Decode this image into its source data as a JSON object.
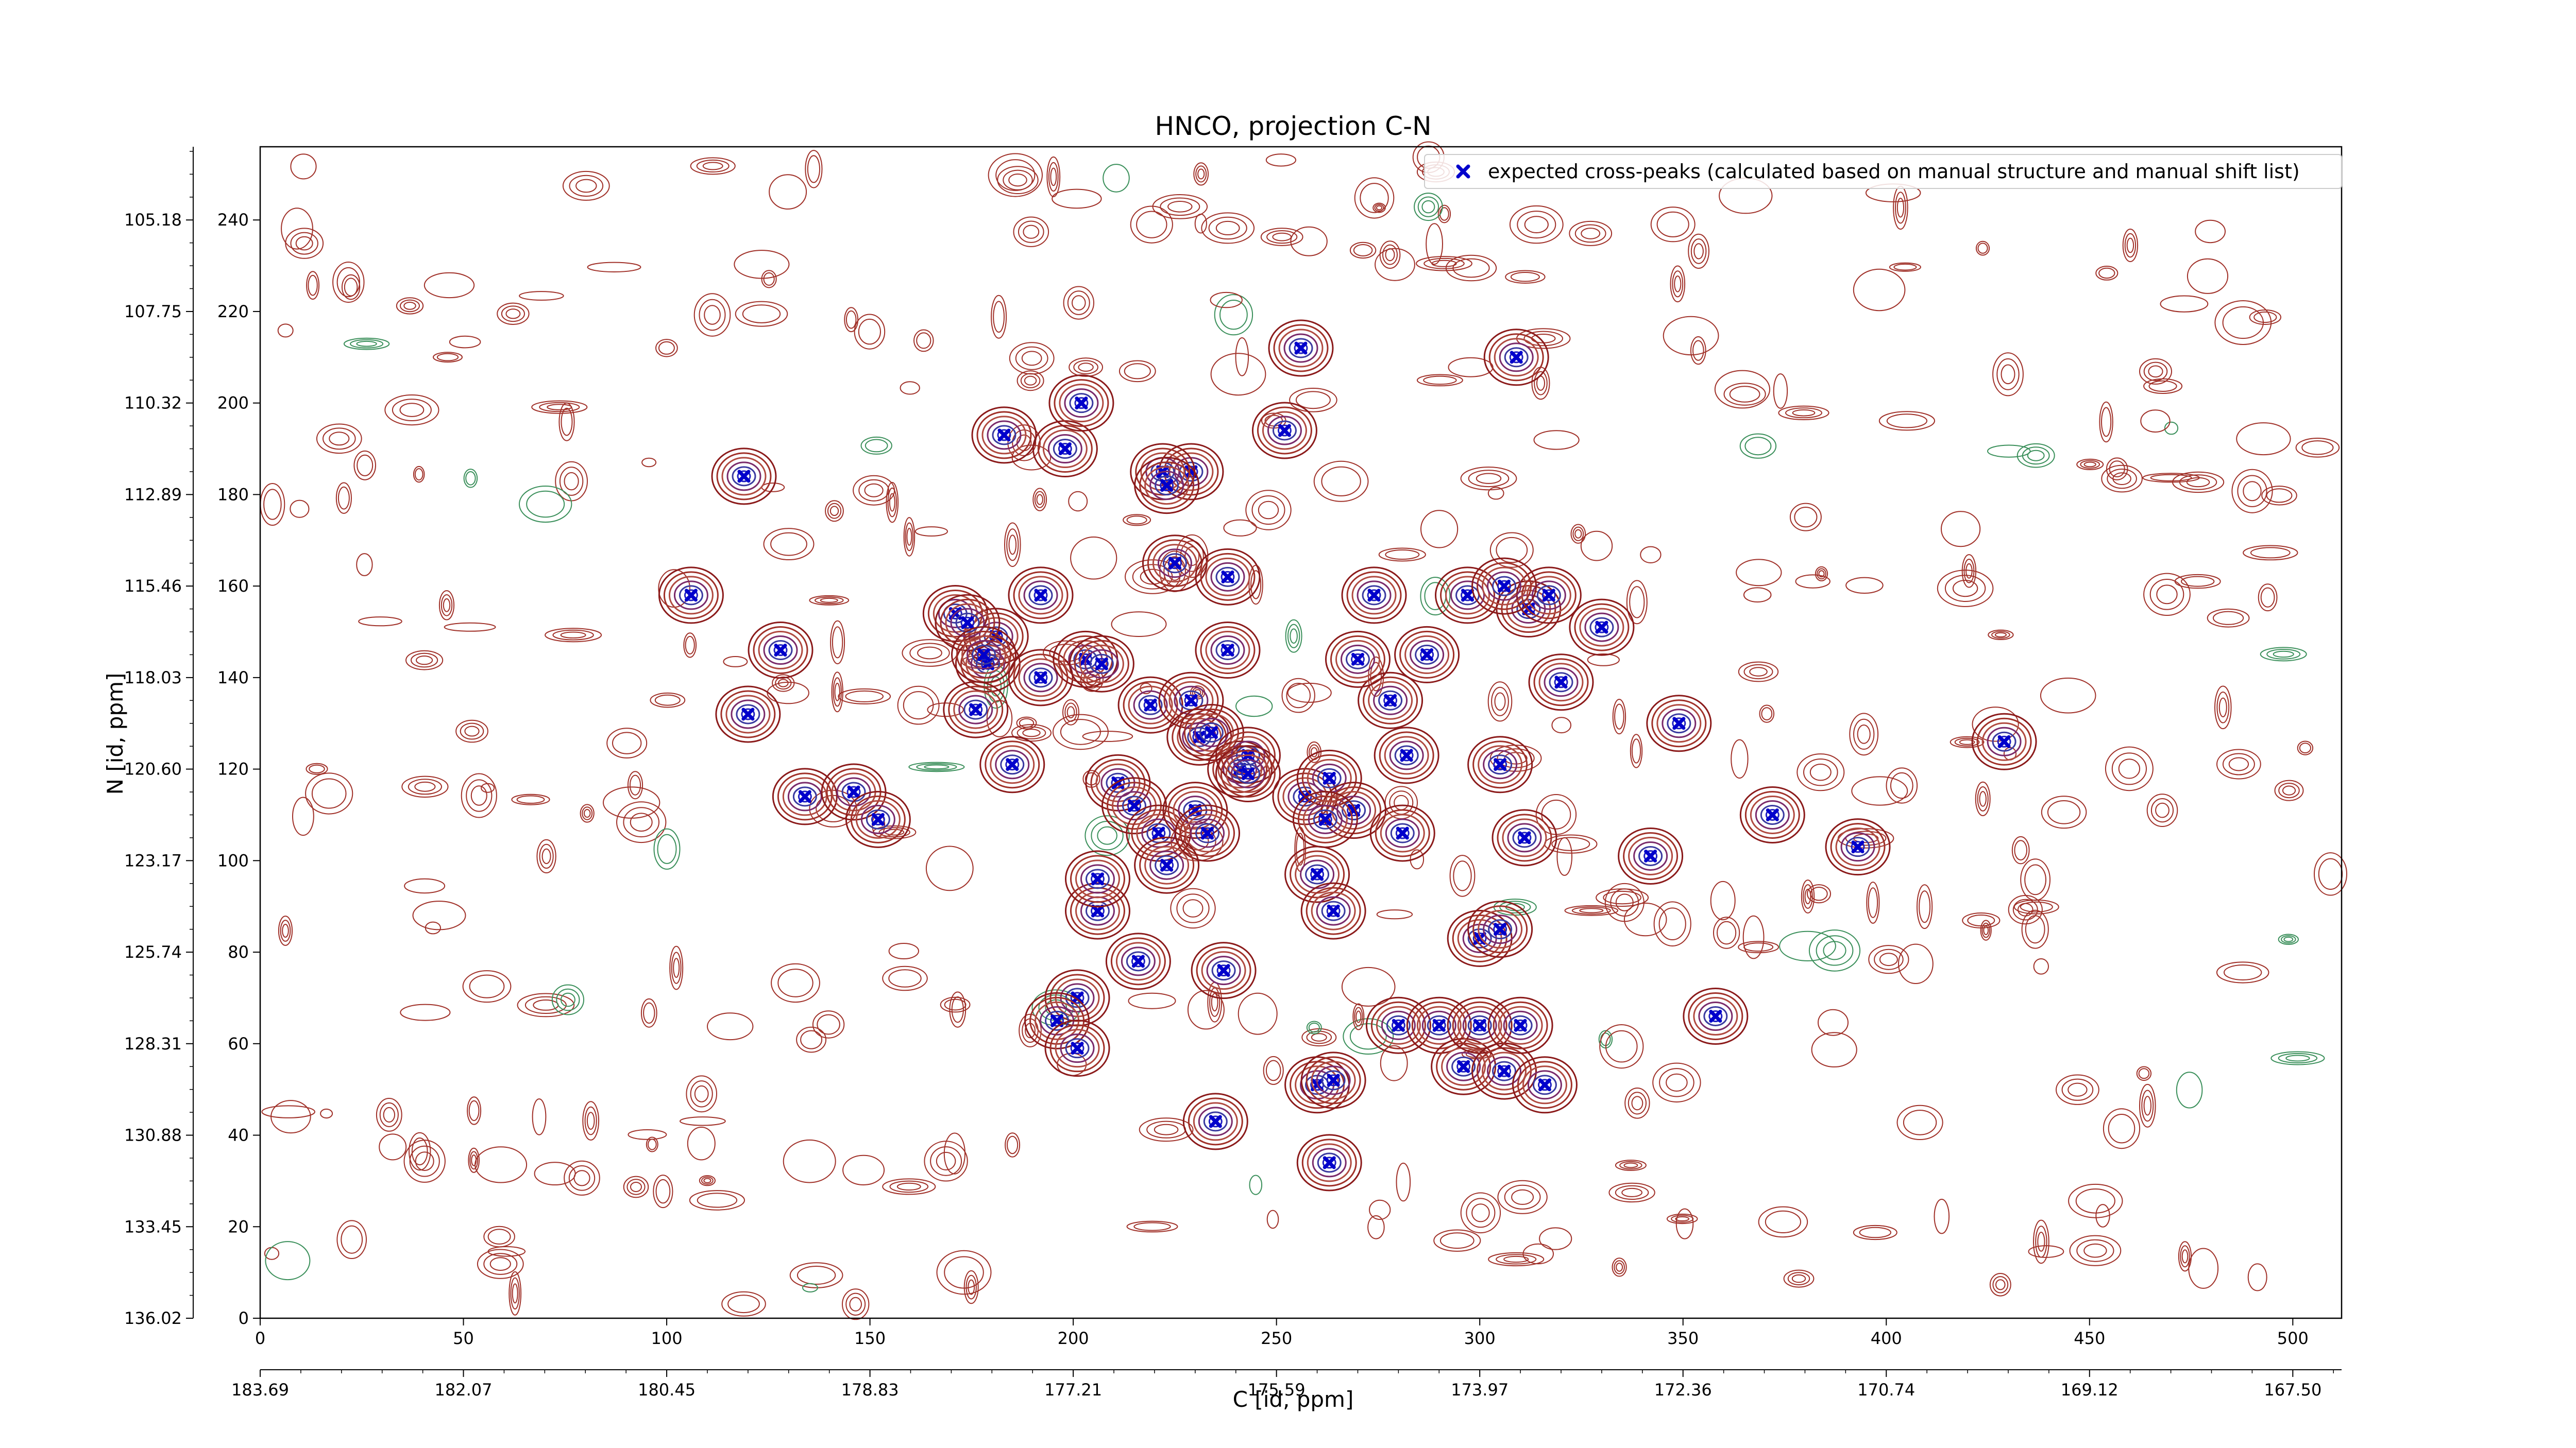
{
  "chart_data": {
    "type": "scatter",
    "title": "HNCO, projection C-N",
    "xlabel": "C [id, ppm]",
    "ylabel": "N [id, ppm]",
    "xlim": [
      0,
      512
    ],
    "ylim": [
      0,
      256
    ],
    "x_ticks": [
      0,
      50,
      100,
      150,
      200,
      250,
      300,
      350,
      400,
      450,
      500
    ],
    "y_ticks": [
      0,
      20,
      40,
      60,
      80,
      100,
      120,
      140,
      160,
      180,
      200,
      220,
      240
    ],
    "x_ppm_ticks": [
      {
        "pos": 0,
        "label": "183.69"
      },
      {
        "pos": 50,
        "label": "182.07"
      },
      {
        "pos": 100,
        "label": "180.45"
      },
      {
        "pos": 150,
        "label": "178.83"
      },
      {
        "pos": 200,
        "label": "177.21"
      },
      {
        "pos": 250,
        "label": "175.59"
      },
      {
        "pos": 300,
        "label": "173.97"
      },
      {
        "pos": 350,
        "label": "172.36"
      },
      {
        "pos": 400,
        "label": "170.74"
      },
      {
        "pos": 450,
        "label": "169.12"
      },
      {
        "pos": 500,
        "label": "167.50"
      }
    ],
    "y_ppm_ticks": [
      {
        "pos": 0,
        "label": "136.02"
      },
      {
        "pos": 20,
        "label": "133.45"
      },
      {
        "pos": 40,
        "label": "130.88"
      },
      {
        "pos": 60,
        "label": "128.31"
      },
      {
        "pos": 80,
        "label": "125.74"
      },
      {
        "pos": 100,
        "label": "123.17"
      },
      {
        "pos": 120,
        "label": "120.60"
      },
      {
        "pos": 140,
        "label": "118.03"
      },
      {
        "pos": 160,
        "label": "115.46"
      },
      {
        "pos": 180,
        "label": "112.89"
      },
      {
        "pos": 200,
        "label": "110.32"
      },
      {
        "pos": 220,
        "label": "107.75"
      },
      {
        "pos": 240,
        "label": "105.18"
      }
    ],
    "legend_position": "top-right",
    "series": [
      {
        "name": "expected cross-peaks (calculated based on manual structure and manual shift list)",
        "color": "#0000cc",
        "marker": "x",
        "points": [
          [
            119,
            184
          ],
          [
            120,
            132
          ],
          [
            106,
            158
          ],
          [
            128,
            146
          ],
          [
            134,
            114
          ],
          [
            146,
            115
          ],
          [
            152,
            109
          ],
          [
            183,
            193
          ],
          [
            181,
            149
          ],
          [
            179,
            143
          ],
          [
            171,
            154
          ],
          [
            176,
            133
          ],
          [
            185,
            121
          ],
          [
            198,
            190
          ],
          [
            202,
            200
          ],
          [
            192,
            158
          ],
          [
            192,
            140
          ],
          [
            203,
            144
          ],
          [
            207,
            143
          ],
          [
            206,
            89
          ],
          [
            211,
            117
          ],
          [
            215,
            112
          ],
          [
            216,
            78
          ],
          [
            221,
            106
          ],
          [
            229,
            185
          ],
          [
            225,
            165
          ],
          [
            222,
            185
          ],
          [
            223,
            182
          ],
          [
            219,
            134
          ],
          [
            230,
            111
          ],
          [
            233,
            106
          ],
          [
            229,
            135
          ],
          [
            231,
            127
          ],
          [
            234,
            128
          ],
          [
            238,
            162
          ],
          [
            241,
            120
          ],
          [
            243,
            123
          ],
          [
            243,
            119
          ],
          [
            238,
            146
          ],
          [
            237,
            76
          ],
          [
            235,
            43
          ],
          [
            201,
            70
          ],
          [
            196,
            65
          ],
          [
            201,
            59
          ],
          [
            206,
            96
          ],
          [
            223,
            99
          ],
          [
            257,
            114
          ],
          [
            263,
            118
          ],
          [
            269,
            111
          ],
          [
            260,
            97
          ],
          [
            262,
            109
          ],
          [
            264,
            89
          ],
          [
            260,
            51
          ],
          [
            264,
            52
          ],
          [
            252,
            194
          ],
          [
            256,
            212
          ],
          [
            274,
            158
          ],
          [
            278,
            135
          ],
          [
            281,
            106
          ],
          [
            282,
            123
          ],
          [
            287,
            145
          ],
          [
            270,
            144
          ],
          [
            280,
            64
          ],
          [
            290,
            64
          ],
          [
            296,
            55
          ],
          [
            300,
            64
          ],
          [
            306,
            54
          ],
          [
            310,
            64
          ],
          [
            316,
            51
          ],
          [
            305,
            121
          ],
          [
            311,
            105
          ],
          [
            312,
            155
          ],
          [
            320,
            139
          ],
          [
            317,
            158
          ],
          [
            297,
            158
          ],
          [
            306,
            160
          ],
          [
            330,
            151
          ],
          [
            342,
            101
          ],
          [
            349,
            130
          ],
          [
            358,
            66
          ],
          [
            372,
            110
          ],
          [
            393,
            103
          ],
          [
            300,
            83
          ],
          [
            305,
            85
          ],
          [
            263,
            34
          ],
          [
            309,
            210
          ],
          [
            429,
            126
          ],
          [
            174,
            152
          ],
          [
            178,
            145
          ]
        ]
      }
    ],
    "grid": false
  }
}
